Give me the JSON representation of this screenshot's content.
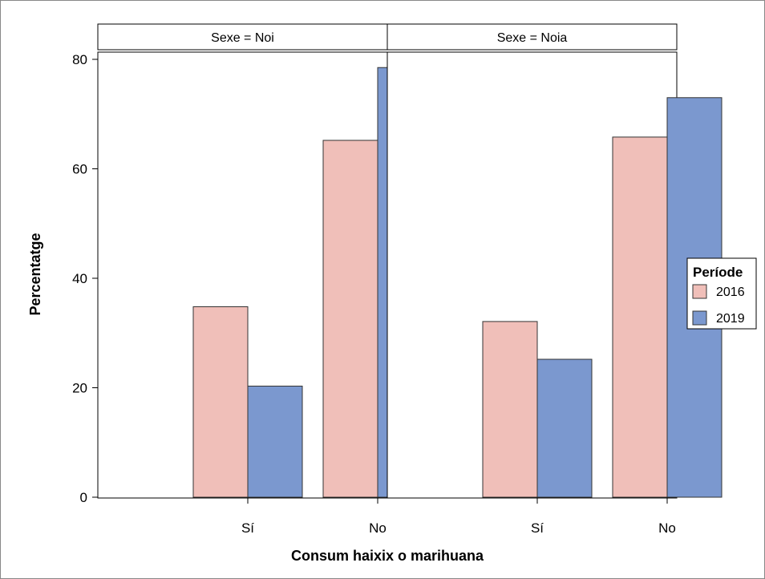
{
  "chart_data": {
    "type": "bar",
    "xlabel": "Consum haixix o marihuana",
    "ylabel": "Percentatge",
    "ylim": [
      0,
      80
    ],
    "yticks": [
      0,
      20,
      40,
      60,
      80
    ],
    "categories": [
      "Sí",
      "No"
    ],
    "panels": [
      {
        "label": "Sexe = Noi",
        "series": [
          {
            "name": "2016",
            "values": [
              34.8,
              65.2
            ]
          },
          {
            "name": "2019",
            "values": [
              20.3,
              78.5
            ]
          }
        ]
      },
      {
        "label": "Sexe = Noia",
        "series": [
          {
            "name": "2016",
            "values": [
              32.1,
              65.8
            ]
          },
          {
            "name": "2019",
            "values": [
              25.2,
              73.0
            ]
          }
        ]
      }
    ],
    "legend": {
      "title": "Període",
      "position": "right",
      "entries": [
        {
          "name": "2016",
          "color": "#f0bfb9"
        },
        {
          "name": "2019",
          "color": "#7b98cf"
        }
      ]
    },
    "grid": false
  }
}
